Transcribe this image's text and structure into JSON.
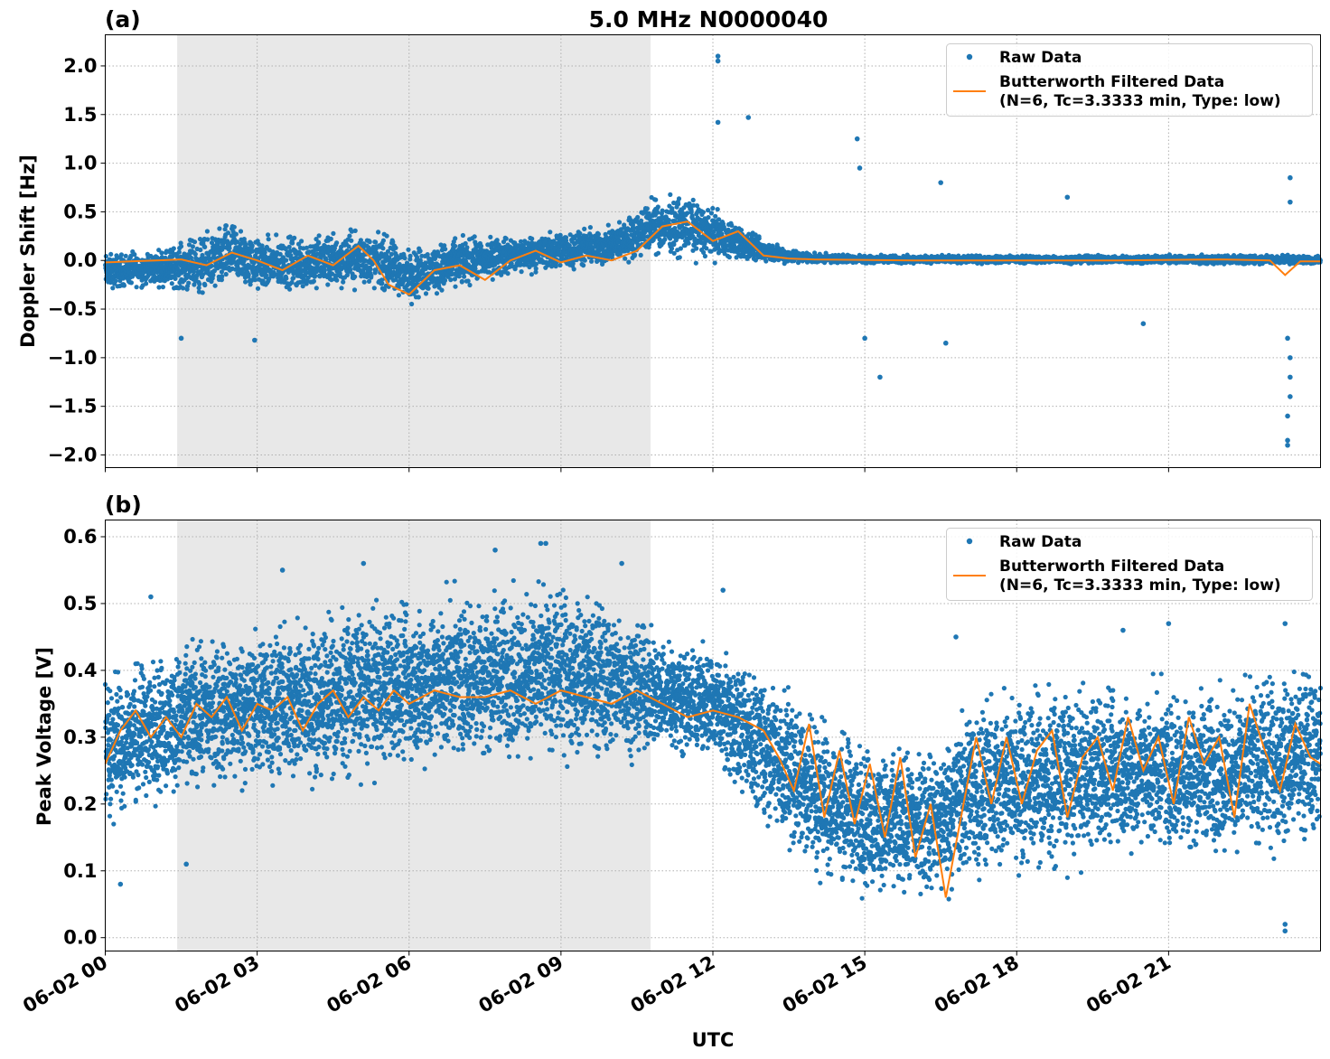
{
  "figure": {
    "title": "5.0 MHz N0000040"
  },
  "colors": {
    "raw": "#1f77b4",
    "filtered": "#ff7f0e",
    "shade": "#e8e8e8",
    "grid": "#b0b0b0"
  },
  "chart_data": [
    {
      "type": "scatter",
      "panel_label": "(a)",
      "ylabel": "Doppler Shift [Hz]",
      "xlabel": "",
      "xlim": [
        0,
        24
      ],
      "ylim": [
        -2.13,
        2.32
      ],
      "yticks": [
        -2.0,
        -1.5,
        -1.0,
        -0.5,
        0.0,
        0.5,
        1.0,
        1.5,
        2.0
      ],
      "ytick_labels": [
        "−2.0",
        "−1.5",
        "−1.0",
        "−0.5",
        "0.0",
        "0.5",
        "1.0",
        "1.5",
        "2.0"
      ],
      "xticks": [
        0,
        3,
        6,
        9,
        12,
        15,
        18,
        21
      ],
      "xtick_labels": [],
      "grid": true,
      "shaded_region": [
        1.42,
        10.77
      ],
      "legend_position": "top-right",
      "legend": [
        "Raw Data",
        "Butterworth Filtered Data",
        "(N=6, Tc=3.3333 min, Type: low)"
      ],
      "series": [
        {
          "name": "Raw Data",
          "kind": "scatter-band",
          "x": [
            0,
            1,
            2,
            2.5,
            3,
            4,
            5,
            5.5,
            6,
            7,
            8,
            9,
            10,
            10.8,
            11.5,
            12,
            12.5,
            13,
            13.5,
            14,
            16,
            18,
            20,
            22,
            23,
            24
          ],
          "low": [
            -0.35,
            -0.3,
            -0.45,
            -0.35,
            -0.4,
            -0.4,
            -0.35,
            -0.4,
            -0.5,
            -0.35,
            -0.2,
            -0.15,
            -0.1,
            0.0,
            -0.05,
            -0.05,
            -0.05,
            -0.05,
            -0.05,
            -0.04,
            -0.04,
            -0.04,
            -0.04,
            -0.05,
            -0.05,
            -0.05
          ],
          "high": [
            0.12,
            0.15,
            0.35,
            0.5,
            0.3,
            0.35,
            0.4,
            0.35,
            0.2,
            0.3,
            0.3,
            0.35,
            0.4,
            0.7,
            0.75,
            0.6,
            0.4,
            0.25,
            0.15,
            0.08,
            0.06,
            0.06,
            0.06,
            0.07,
            0.07,
            0.06
          ]
        },
        {
          "name": "Butterworth Filtered Data",
          "kind": "line",
          "x": [
            0,
            0.5,
            1,
            1.5,
            2,
            2.5,
            3,
            3.5,
            4,
            4.5,
            5,
            5.3,
            5.6,
            6,
            6.5,
            7,
            7.5,
            8,
            8.5,
            9,
            9.5,
            10,
            10.5,
            11,
            11.5,
            12,
            12.5,
            13,
            13.5,
            14,
            16,
            18,
            20,
            22,
            23,
            23.3,
            23.6,
            24
          ],
          "y": [
            -0.02,
            -0.01,
            0.0,
            0.01,
            -0.05,
            0.08,
            0.0,
            -0.1,
            0.05,
            -0.05,
            0.15,
            0.0,
            -0.25,
            -0.35,
            -0.1,
            -0.05,
            -0.2,
            0.0,
            0.1,
            -0.02,
            0.05,
            0.0,
            0.1,
            0.35,
            0.4,
            0.2,
            0.3,
            0.05,
            0.02,
            0.01,
            0.0,
            0.0,
            0.0,
            0.01,
            0.0,
            -0.15,
            -0.01,
            -0.01
          ]
        }
      ],
      "outliers": [
        {
          "x": 12.1,
          "y": 2.1
        },
        {
          "x": 12.1,
          "y": 2.05
        },
        {
          "x": 12.1,
          "y": 1.42
        },
        {
          "x": 12.7,
          "y": 1.47
        },
        {
          "x": 14.85,
          "y": 1.25
        },
        {
          "x": 14.9,
          "y": 0.95
        },
        {
          "x": 16.5,
          "y": 0.8
        },
        {
          "x": 19.0,
          "y": 0.65
        },
        {
          "x": 23.4,
          "y": 0.85
        },
        {
          "x": 23.4,
          "y": 0.6
        },
        {
          "x": 15.3,
          "y": -1.2
        },
        {
          "x": 15.0,
          "y": -0.8
        },
        {
          "x": 23.35,
          "y": -1.9
        },
        {
          "x": 23.35,
          "y": -1.85
        },
        {
          "x": 23.35,
          "y": -1.6
        },
        {
          "x": 23.4,
          "y": -1.4
        },
        {
          "x": 23.4,
          "y": -1.2
        },
        {
          "x": 23.4,
          "y": -1.0
        },
        {
          "x": 23.35,
          "y": -0.8
        },
        {
          "x": 16.6,
          "y": -0.85
        },
        {
          "x": 20.5,
          "y": -0.65
        },
        {
          "x": 2.95,
          "y": -0.82
        },
        {
          "x": 1.5,
          "y": -0.8
        }
      ]
    },
    {
      "type": "scatter",
      "panel_label": "(b)",
      "ylabel": "Peak Voltage [V]",
      "xlabel": "UTC",
      "xlim": [
        0,
        24
      ],
      "ylim": [
        -0.02,
        0.625
      ],
      "yticks": [
        0.0,
        0.1,
        0.2,
        0.3,
        0.4,
        0.5,
        0.6
      ],
      "ytick_labels": [
        "0.0",
        "0.1",
        "0.2",
        "0.3",
        "0.4",
        "0.5",
        "0.6"
      ],
      "xticks": [
        0,
        3,
        6,
        9,
        12,
        15,
        18,
        21
      ],
      "xtick_labels": [
        "06-02 00",
        "06-02 03",
        "06-02 06",
        "06-02 09",
        "06-02 12",
        "06-02 15",
        "06-02 18",
        "06-02 21"
      ],
      "grid": true,
      "shaded_region": [
        1.42,
        10.77
      ],
      "legend_position": "top-right",
      "legend": [
        "Raw Data",
        "Butterworth Filtered Data",
        "(N=6, Tc=3.3333 min, Type: low)"
      ],
      "series": [
        {
          "name": "Raw Data",
          "kind": "scatter-band",
          "x": [
            0,
            1,
            2,
            3,
            4,
            5,
            6,
            7,
            8,
            9,
            10,
            10.8,
            11.5,
            12,
            12.5,
            13,
            13.5,
            14,
            14.5,
            15,
            15.5,
            16,
            16.5,
            17,
            18,
            19,
            20,
            21,
            22,
            23,
            24
          ],
          "low": [
            0.15,
            0.18,
            0.2,
            0.2,
            0.2,
            0.22,
            0.22,
            0.24,
            0.24,
            0.24,
            0.24,
            0.26,
            0.25,
            0.25,
            0.2,
            0.15,
            0.1,
            0.07,
            0.05,
            0.04,
            0.04,
            0.04,
            0.03,
            0.05,
            0.07,
            0.08,
            0.1,
            0.1,
            0.1,
            0.1,
            0.12
          ],
          "high": [
            0.42,
            0.45,
            0.47,
            0.49,
            0.5,
            0.52,
            0.53,
            0.54,
            0.55,
            0.55,
            0.53,
            0.48,
            0.46,
            0.45,
            0.44,
            0.42,
            0.4,
            0.37,
            0.34,
            0.32,
            0.3,
            0.3,
            0.32,
            0.38,
            0.4,
            0.4,
            0.4,
            0.4,
            0.4,
            0.42,
            0.44
          ]
        },
        {
          "name": "Butterworth Filtered Data",
          "kind": "line",
          "x": [
            0,
            0.3,
            0.6,
            0.9,
            1.2,
            1.5,
            1.8,
            2.1,
            2.4,
            2.7,
            3.0,
            3.3,
            3.6,
            3.9,
            4.2,
            4.5,
            4.8,
            5.1,
            5.4,
            5.7,
            6.0,
            6.5,
            7.0,
            7.5,
            8.0,
            8.5,
            9.0,
            9.5,
            10.0,
            10.5,
            11.0,
            11.5,
            12.0,
            12.5,
            13.0,
            13.3,
            13.6,
            13.9,
            14.2,
            14.5,
            14.8,
            15.1,
            15.4,
            15.7,
            16.0,
            16.3,
            16.6,
            16.9,
            17.2,
            17.5,
            17.8,
            18.1,
            18.4,
            18.7,
            19.0,
            19.3,
            19.6,
            19.9,
            20.2,
            20.5,
            20.8,
            21.1,
            21.4,
            21.7,
            22.0,
            22.3,
            22.6,
            22.9,
            23.2,
            23.5,
            23.8,
            24
          ],
          "y": [
            0.26,
            0.31,
            0.34,
            0.3,
            0.33,
            0.3,
            0.35,
            0.33,
            0.36,
            0.31,
            0.35,
            0.34,
            0.36,
            0.31,
            0.35,
            0.37,
            0.33,
            0.36,
            0.34,
            0.37,
            0.35,
            0.37,
            0.36,
            0.36,
            0.37,
            0.35,
            0.37,
            0.36,
            0.35,
            0.37,
            0.35,
            0.33,
            0.34,
            0.33,
            0.31,
            0.27,
            0.22,
            0.32,
            0.18,
            0.28,
            0.17,
            0.26,
            0.15,
            0.27,
            0.12,
            0.2,
            0.06,
            0.18,
            0.3,
            0.2,
            0.3,
            0.2,
            0.28,
            0.31,
            0.18,
            0.27,
            0.3,
            0.22,
            0.33,
            0.25,
            0.3,
            0.2,
            0.33,
            0.26,
            0.3,
            0.18,
            0.35,
            0.28,
            0.22,
            0.32,
            0.27,
            0.26
          ]
        }
      ],
      "outliers": [
        {
          "x": 8.7,
          "y": 0.59
        },
        {
          "x": 8.6,
          "y": 0.59
        },
        {
          "x": 7.7,
          "y": 0.58
        },
        {
          "x": 5.1,
          "y": 0.56
        },
        {
          "x": 10.2,
          "y": 0.56
        },
        {
          "x": 0.9,
          "y": 0.51
        },
        {
          "x": 3.5,
          "y": 0.55
        },
        {
          "x": 12.2,
          "y": 0.52
        },
        {
          "x": 0.3,
          "y": 0.08
        },
        {
          "x": 1.6,
          "y": 0.11
        },
        {
          "x": 23.3,
          "y": 0.01
        },
        {
          "x": 23.3,
          "y": 0.02
        },
        {
          "x": 16.8,
          "y": 0.45
        },
        {
          "x": 20.1,
          "y": 0.46
        },
        {
          "x": 21.0,
          "y": 0.47
        },
        {
          "x": 23.3,
          "y": 0.47
        }
      ]
    }
  ]
}
